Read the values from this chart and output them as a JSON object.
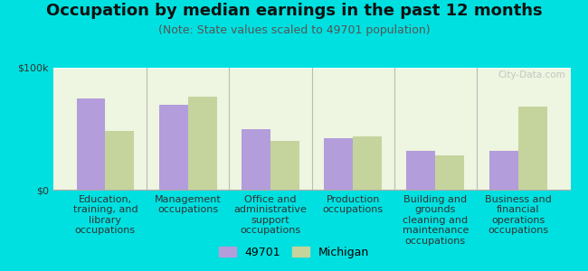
{
  "title": "Occupation by median earnings in the past 12 months",
  "subtitle": "(Note: State values scaled to 49701 population)",
  "background_color": "#00e0e0",
  "plot_bg_color": "#eef5e0",
  "categories": [
    "Education,\ntraining, and\nlibrary\noccupations",
    "Management\noccupations",
    "Office and\nadministrative\nsupport\noccupations",
    "Production\noccupations",
    "Building and\ngrounds\ncleaning and\nmaintenance\noccupations",
    "Business and\nfinancial\noperations\noccupations"
  ],
  "values_49701": [
    75000,
    70000,
    50000,
    42000,
    32000,
    32000
  ],
  "values_michigan": [
    48000,
    76000,
    40000,
    44000,
    28000,
    68000
  ],
  "color_49701": "#b39ddb",
  "color_michigan": "#c5d49d",
  "ylim": [
    0,
    100000
  ],
  "yticks": [
    0,
    100000
  ],
  "ytick_labels": [
    "$0",
    "$100k"
  ],
  "legend_labels": [
    "49701",
    "Michigan"
  ],
  "watermark": "City-Data.com",
  "bar_width": 0.35,
  "title_fontsize": 13,
  "subtitle_fontsize": 9,
  "tick_fontsize": 8,
  "legend_fontsize": 9
}
